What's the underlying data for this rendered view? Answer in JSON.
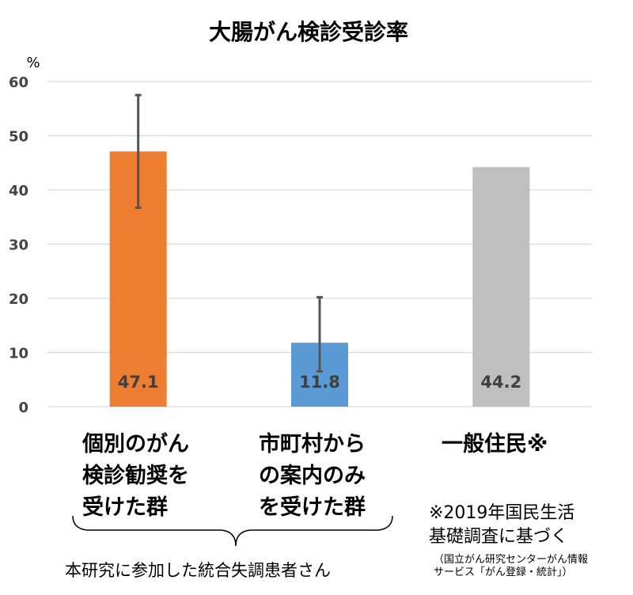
{
  "chart_data": {
    "type": "bar",
    "title": "大腸がん検診受診率",
    "ylabel": "%",
    "ylim": [
      0,
      60
    ],
    "yticks": [
      0,
      10,
      20,
      30,
      40,
      50,
      60
    ],
    "grid": true,
    "categories": [
      "個別のがん\n検診勧奨を\n受けた群",
      "市町村から\nの案内のみ\nを受けた群",
      "一般住民※"
    ],
    "values": [
      47.1,
      11.8,
      44.2
    ],
    "value_labels": [
      "47.1",
      "11.8",
      "44.2"
    ],
    "error_bars": [
      {
        "low": 36.7,
        "high": 57.5
      },
      {
        "low": 6.5,
        "high": 20.2
      },
      null
    ],
    "colors": [
      "#ED7D31",
      "#5B9BD5",
      "#BFBFBF"
    ]
  },
  "annotations": {
    "note": "※2019年国民生活\n基礎調査に基づく",
    "source": "（国立がん研究センターがん情報\nサービス「がん登録・統計」）",
    "group_caption": "本研究に参加した統合失調患者さん"
  }
}
